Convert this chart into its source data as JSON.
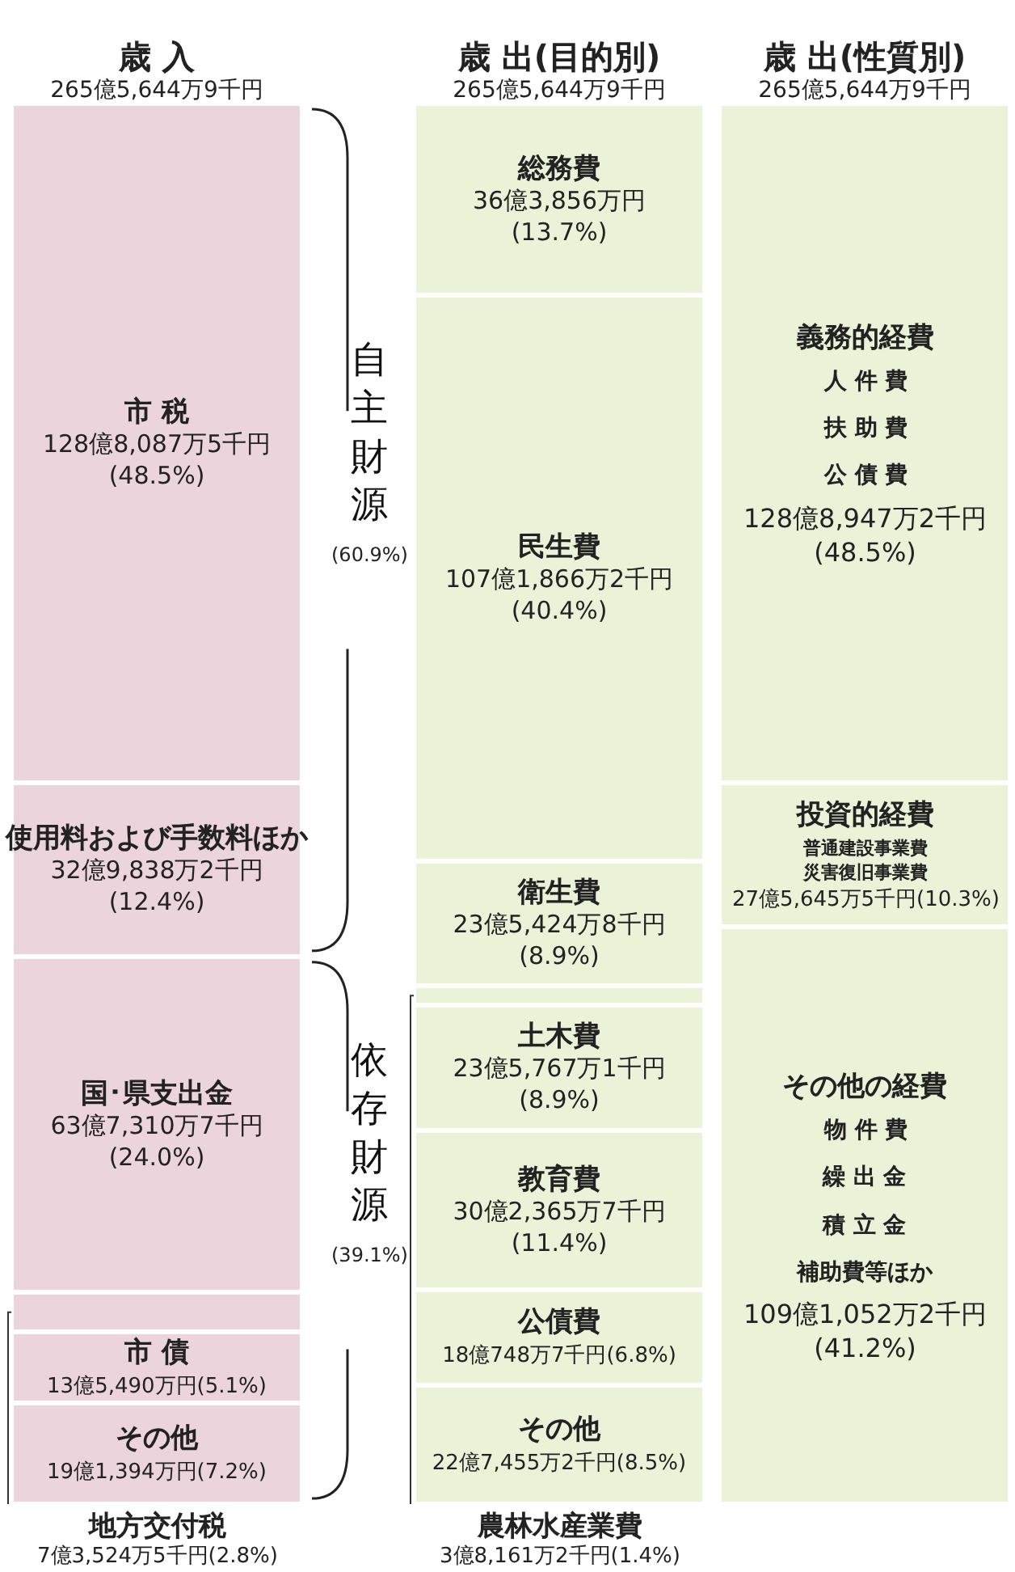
{
  "chart_data": {
    "type": "bar",
    "stacked": true,
    "categories": [
      "歳 入",
      "歳 出(目的別)",
      "歳 出(性質別)"
    ],
    "totals": [
      "265億5,644万9千円",
      "265億5,644万9千円",
      "265億5,644万9千円"
    ],
    "legend": false,
    "series": [
      {
        "name": "その他",
        "color": "#ecd4dc",
        "values": [
          7.2,
          null,
          null
        ],
        "value_labels": [
          "19億1,394万円(7.2%)",
          null,
          null
        ]
      },
      {
        "name": "市 債",
        "color": "#ecd4dc",
        "values": [
          5.1,
          null,
          null
        ],
        "value_labels": [
          "13億5,490万円(5.1%)",
          null,
          null
        ]
      },
      {
        "name": "地方交付税",
        "color": "#ecd4dc",
        "values": [
          2.8,
          null,
          null
        ],
        "value_labels": [
          "7億3,524万5千円(2.8%)",
          null,
          null
        ]
      },
      {
        "name": "国･県支出金",
        "color": "#ecd4dc",
        "values": [
          24.0,
          null,
          null
        ],
        "value_labels": [
          "63億7,310万7千円\n(24.0%)",
          null,
          null
        ]
      },
      {
        "name": "使用料および手数料ほか",
        "color": "#ecd4dc",
        "values": [
          12.4,
          null,
          null
        ],
        "value_labels": [
          "32億9,838万2千円\n(12.4%)",
          null,
          null
        ]
      },
      {
        "name": "市 税",
        "color": "#ecd4dc",
        "values": [
          48.5,
          null,
          null
        ],
        "value_labels": [
          "128億8,087万5千円\n(48.5%)",
          null,
          null
        ]
      },
      {
        "name": "その他",
        "color": "#eaf2d8",
        "values": [
          null,
          8.5,
          null
        ],
        "value_labels": [
          null,
          "22億7,455万2千円(8.5%)",
          null
        ]
      },
      {
        "name": "公債費",
        "color": "#eaf2d8",
        "values": [
          null,
          6.8,
          null
        ],
        "value_labels": [
          null,
          "18億748万7千円(6.8%)",
          null
        ]
      },
      {
        "name": "教育費",
        "color": "#eaf2d8",
        "values": [
          null,
          11.4,
          null
        ],
        "value_labels": [
          null,
          "30億2,365万7千円\n(11.4%)",
          null
        ]
      },
      {
        "name": "土木費",
        "color": "#eaf2d8",
        "values": [
          null,
          8.9,
          null
        ],
        "value_labels": [
          null,
          "23億5,767万1千円\n(8.9%)",
          null
        ]
      },
      {
        "name": "農林水産業費",
        "color": "#eaf2d8",
        "values": [
          null,
          1.4,
          null
        ],
        "value_labels": [
          null,
          "3億8,161万2千円(1.4%)",
          null
        ]
      },
      {
        "name": "衛生費",
        "color": "#eaf2d8",
        "values": [
          null,
          8.9,
          null
        ],
        "value_labels": [
          null,
          "23億5,424万8千円\n(8.9%)",
          null
        ]
      },
      {
        "name": "民生費",
        "color": "#eaf2d8",
        "values": [
          null,
          40.4,
          null
        ],
        "value_labels": [
          null,
          "107億1,866万2千円\n(40.4%)",
          null
        ]
      },
      {
        "name": "総務費",
        "color": "#eaf2d8",
        "values": [
          null,
          13.7,
          null
        ],
        "value_labels": [
          null,
          "36億3,856万円\n(13.7%)",
          null
        ]
      },
      {
        "name": "その他の経費",
        "color": "#eaf2d8",
        "values": [
          null,
          null,
          41.2
        ],
        "value_labels": [
          null,
          null,
          "109億1,052万2千円\n(41.2%)"
        ]
      },
      {
        "name": "投資的経費",
        "color": "#eaf2d8",
        "values": [
          null,
          null,
          10.3
        ],
        "value_labels": [
          null,
          null,
          "27億5,645万5千円(10.3%)"
        ]
      },
      {
        "name": "義務的経費",
        "color": "#eaf2d8",
        "values": [
          null,
          null,
          48.5
        ],
        "value_labels": [
          null,
          null,
          "128億8,947万2千円\n(48.5%)"
        ]
      }
    ],
    "annotations": [
      "自主財源",
      "(60.9%)",
      "依存財源",
      "(39.1%)",
      "人 件 費",
      "扶 助 費",
      "公 債 費",
      "普通建設事業費",
      "災害復旧事業費",
      "物 件 費",
      "繰 出 金",
      "積 立 金",
      "補助費等ほか"
    ]
  }
}
